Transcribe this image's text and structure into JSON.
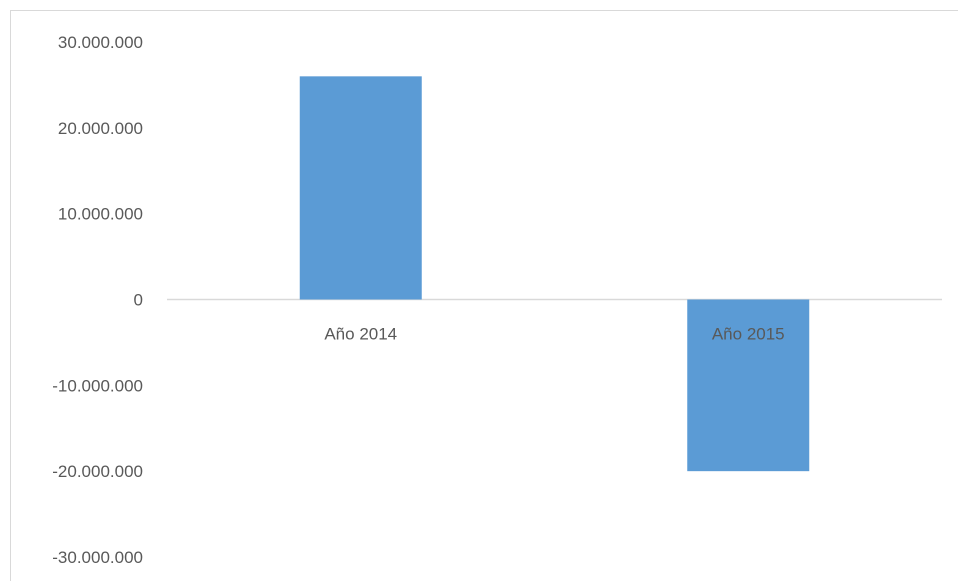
{
  "chart_data": {
    "type": "bar",
    "categories": [
      "Año 2014",
      "Año 2015"
    ],
    "values": [
      26000000,
      -20000000
    ],
    "title": "",
    "xlabel": "",
    "ylabel": "",
    "ylim": [
      -30000000,
      30000000
    ],
    "yticks": [
      30000000,
      20000000,
      10000000,
      0,
      -10000000,
      -20000000,
      -30000000
    ],
    "ytick_labels": [
      "30.000.000",
      "20.000.000",
      "10.000.000",
      "0",
      "-10.000.000",
      "-20.000.000",
      "-30.000.000"
    ],
    "grid": false,
    "legend": "none",
    "colors": {
      "bar": "#5b9bd5",
      "axis": "#d9d9d9",
      "text": "#595959"
    }
  }
}
